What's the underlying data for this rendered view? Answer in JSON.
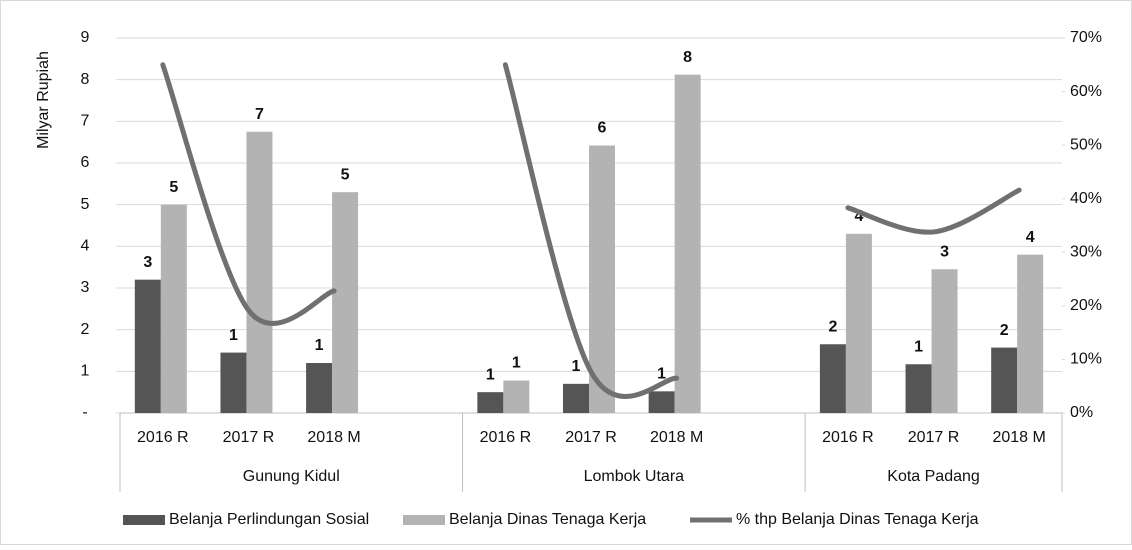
{
  "chart_data": {
    "type": "bar",
    "y_label": "Milyar Rupiah",
    "groups": [
      {
        "name": "Gunung Kidul",
        "categories": [
          "2016 R",
          "2017 R",
          "2018 M",
          null
        ]
      },
      {
        "name": "Lombok Utara",
        "categories": [
          "2016 R",
          "2017 R",
          "2018 M",
          null
        ]
      },
      {
        "name": "Kota Padang",
        "categories": [
          "2016 R",
          "2017 R",
          "2018 M"
        ]
      }
    ],
    "series": [
      {
        "name": "Belanja Perlindungan Sosial",
        "type": "bar",
        "color": "#555555",
        "values": [
          3.2,
          1.45,
          1.2,
          null,
          0.5,
          0.7,
          0.52,
          null,
          1.65,
          1.17,
          1.57
        ],
        "value_labels": [
          "3",
          "1",
          "1",
          null,
          "1",
          "1",
          "1",
          null,
          "2",
          "1",
          "2"
        ]
      },
      {
        "name": "Belanja Dinas Tenaga Kerja",
        "type": "bar",
        "color": "#b3b3b3",
        "values": [
          5.0,
          6.75,
          5.3,
          null,
          0.78,
          6.42,
          8.12,
          null,
          4.3,
          3.45,
          3.8
        ],
        "value_labels": [
          "5",
          "7",
          "5",
          null,
          "1",
          "6",
          "8",
          null,
          "4",
          "3",
          "4"
        ]
      },
      {
        "name": "% thp Belanja Dinas Tenaga Kerja",
        "type": "line",
        "axis": "y2",
        "color": "#707070",
        "values": [
          65,
          19.2,
          22.8,
          null,
          65,
          7.7,
          6.5,
          null,
          38.3,
          33.8,
          41.6
        ]
      }
    ],
    "ylim": [
      0,
      9
    ],
    "yticks": [
      {
        "value": 0,
        "label": "-"
      },
      1,
      2,
      3,
      4,
      5,
      6,
      7,
      8,
      9
    ],
    "y2lim": [
      0,
      70
    ],
    "y2ticks": [
      {
        "value": 0,
        "label": "0%"
      },
      {
        "value": 10,
        "label": "10%"
      },
      {
        "value": 20,
        "label": "20%"
      },
      {
        "value": 30,
        "label": "30%"
      },
      {
        "value": 40,
        "label": "40%"
      },
      {
        "value": 50,
        "label": "50%"
      },
      {
        "value": 60,
        "label": "60%"
      },
      {
        "value": 70,
        "label": "70%"
      }
    ],
    "grid": true,
    "legend": "bottom"
  }
}
